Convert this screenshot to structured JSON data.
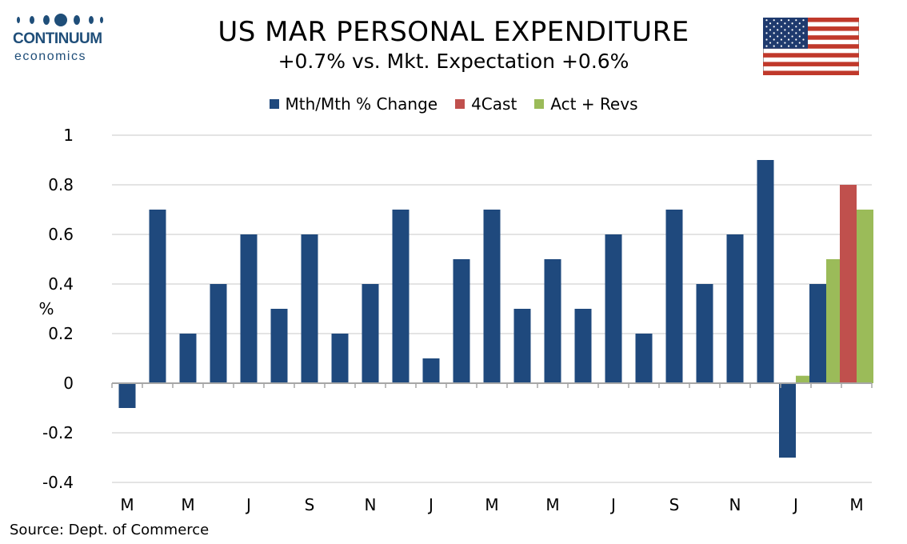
{
  "header": {
    "logo_line1": "CONTINUUM",
    "logo_line2": "economics",
    "title": "US MAR PERSONAL EXPENDITURE",
    "subtitle": "+0.7% vs. Mkt. Expectation +0.6%",
    "flag_icon": "us-flag-icon"
  },
  "footer": {
    "source": "Source: Dept. of Commerce"
  },
  "colors": {
    "series_main": "#1f497d",
    "series_4cast": "#c0504d",
    "series_revs": "#9bbb59",
    "logo": "#1f4e79"
  },
  "chart_data": {
    "type": "bar",
    "ylabel": "%",
    "ylim": [
      -0.4,
      1.0
    ],
    "yticks": [
      -0.4,
      -0.2,
      0,
      0.2,
      0.4,
      0.6,
      0.8,
      1
    ],
    "ytick_labels": [
      "-0.4",
      "-0.2",
      "0",
      "0.2",
      "0.4",
      "0.6",
      "0.8",
      "1"
    ],
    "grid": true,
    "legend_position": "top",
    "tick_labels": [
      "M",
      "M",
      "J",
      "S",
      "N",
      "J",
      "M",
      "M",
      "J",
      "S",
      "N",
      "J",
      "M"
    ],
    "tick_every": 2,
    "series": [
      {
        "name": "Mth/Mth % Change",
        "color": "#1f497d",
        "values": [
          -0.1,
          0.7,
          0.2,
          0.4,
          0.6,
          0.3,
          0.6,
          0.2,
          0.4,
          0.7,
          0.1,
          0.5,
          0.7,
          0.3,
          0.5,
          0.3,
          0.6,
          0.2,
          0.7,
          0.4,
          0.6,
          0.9,
          -0.3,
          0.4,
          null
        ]
      },
      {
        "name": "4Cast",
        "color": "#c0504d",
        "values": [
          null,
          null,
          null,
          null,
          null,
          null,
          null,
          null,
          null,
          null,
          null,
          null,
          null,
          null,
          null,
          null,
          null,
          null,
          null,
          null,
          null,
          null,
          null,
          null,
          0.8
        ]
      },
      {
        "name": "Act + Revs",
        "color": "#9bbb59",
        "values": [
          null,
          null,
          null,
          null,
          null,
          null,
          null,
          null,
          null,
          null,
          null,
          null,
          null,
          null,
          null,
          null,
          null,
          null,
          null,
          null,
          null,
          null,
          0.03,
          0.5,
          0.7
        ]
      }
    ]
  }
}
